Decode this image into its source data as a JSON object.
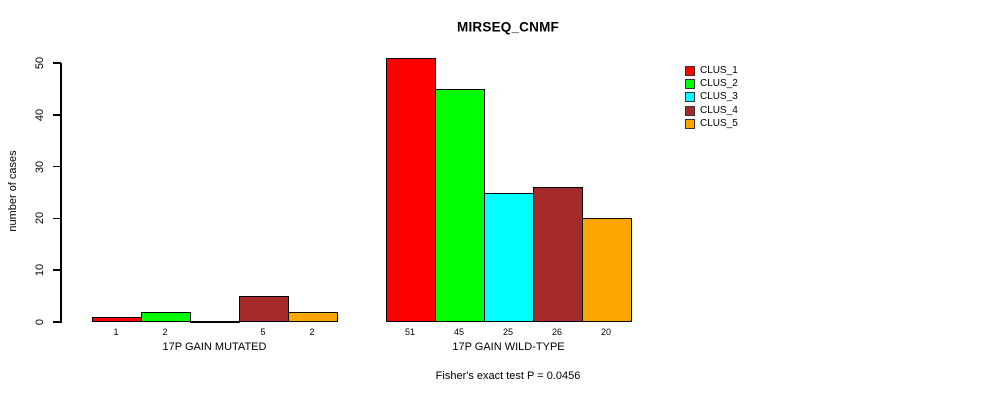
{
  "chart_data": {
    "type": "bar",
    "title": "MIRSEQ_CNMF",
    "ylabel": "number of cases",
    "ylim": [
      0,
      50
    ],
    "yticks": [
      0,
      10,
      20,
      30,
      40,
      50
    ],
    "grid": false,
    "legend_position": "top-right",
    "categories": [
      "17P GAIN MUTATED",
      "17P GAIN WILD-TYPE"
    ],
    "series": [
      {
        "name": "CLUS_1",
        "color": "#FF0000",
        "values": [
          1,
          51
        ]
      },
      {
        "name": "CLUS_2",
        "color": "#00FF00",
        "values": [
          2,
          45
        ]
      },
      {
        "name": "CLUS_3",
        "color": "#00FFFF",
        "values": [
          0,
          25
        ]
      },
      {
        "name": "CLUS_4",
        "color": "#A52A2A",
        "values": [
          5,
          26
        ]
      },
      {
        "name": "CLUS_5",
        "color": "#FFA500",
        "values": [
          2,
          20
        ]
      }
    ],
    "bar_value_labels_shown": true,
    "zero_value_labels_hidden": true,
    "annotation": "Fisher's exact test P = 0.0456"
  }
}
